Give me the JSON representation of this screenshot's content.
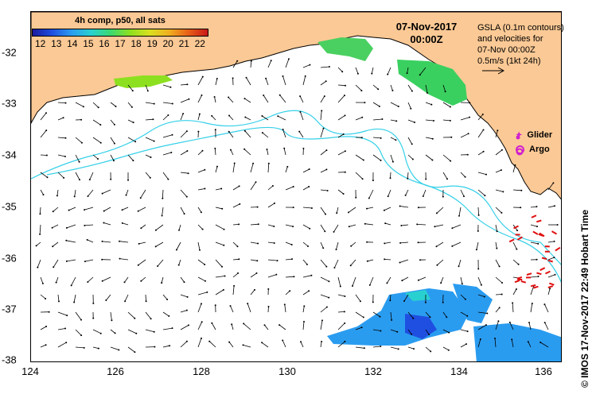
{
  "map": {
    "x_ticks": [
      "124",
      "126",
      "128",
      "130",
      "132",
      "134",
      "136"
    ],
    "y_ticks": [
      "-32",
      "-33",
      "-34",
      "-35",
      "-36",
      "-37",
      "-38"
    ],
    "x_values": [
      124,
      126,
      128,
      130,
      132,
      134,
      136
    ],
    "y_values": [
      -32,
      -33,
      -34,
      -35,
      -36,
      -37,
      -38
    ],
    "lon_range": [
      124,
      136.5
    ],
    "lat_range": [
      -31.3,
      -38.1
    ]
  },
  "scale": {
    "title": "4h comp, p50, all sats",
    "labels": [
      "12",
      "13",
      "14",
      "15",
      "16",
      "17",
      "18",
      "19",
      "20",
      "21",
      "22"
    ],
    "colors": [
      "#1a1a9c",
      "#1f4fe0",
      "#2a9cf0",
      "#29d0d0",
      "#3ad970",
      "#8de020",
      "#d8e020",
      "#f0b020",
      "#e86018",
      "#c81818"
    ]
  },
  "date": {
    "day": "07-Nov-2017",
    "time": "00:00Z"
  },
  "legend": {
    "lines": [
      "GSLA (0.1m contours)",
      "and velocities for",
      "07-Nov 00:00Z",
      "0.5m/s (1kt 24h)"
    ]
  },
  "markers": {
    "glider_label": "Glider",
    "argo_label": "Argo",
    "glider_color": "#d020d0",
    "argo_color": "#d020d0"
  },
  "credit": "© IMOS 17-Nov-2017 22:49 Hobart Time",
  "colors": {
    "land": "#fbc995",
    "coast": "#000000",
    "contour": "#35d0e8",
    "arrow": "#000000",
    "front": "#e01010"
  }
}
